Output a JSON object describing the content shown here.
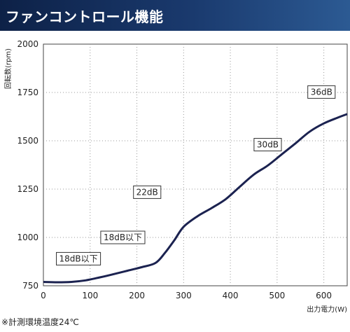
{
  "header": {
    "title": "ファンコントロール機能"
  },
  "note": "※計測環境温度24℃",
  "chart_data": {
    "type": "line",
    "xlabel": "出力電力(W)",
    "ylabel": "回転数(rpm)",
    "xlim": [
      0,
      650
    ],
    "ylim": [
      750,
      2000
    ],
    "xticks": [
      0,
      100,
      200,
      300,
      400,
      500,
      600
    ],
    "yticks": [
      750,
      1000,
      1250,
      1500,
      1750,
      2000
    ],
    "grid": "dotted",
    "line_color": "#1b2250",
    "series": [
      {
        "x": [
          0,
          30,
          60,
          90,
          120,
          150,
          180,
          210,
          240,
          260,
          280,
          300,
          330,
          360,
          390,
          420,
          450,
          480,
          510,
          540,
          570,
          600,
          630,
          650
        ],
        "y": [
          770,
          768,
          770,
          778,
          793,
          810,
          828,
          846,
          868,
          920,
          985,
          1055,
          1110,
          1152,
          1198,
          1262,
          1325,
          1372,
          1430,
          1488,
          1548,
          1590,
          1620,
          1638
        ]
      }
    ],
    "annotations": [
      {
        "text": "18dB以下",
        "x": 75,
        "y": 890
      },
      {
        "text": "18dB以下",
        "x": 170,
        "y": 1000
      },
      {
        "text": "22dB",
        "x": 222,
        "y": 1234
      },
      {
        "text": "30dB",
        "x": 480,
        "y": 1480
      },
      {
        "text": "36dB",
        "x": 595,
        "y": 1752
      }
    ]
  }
}
